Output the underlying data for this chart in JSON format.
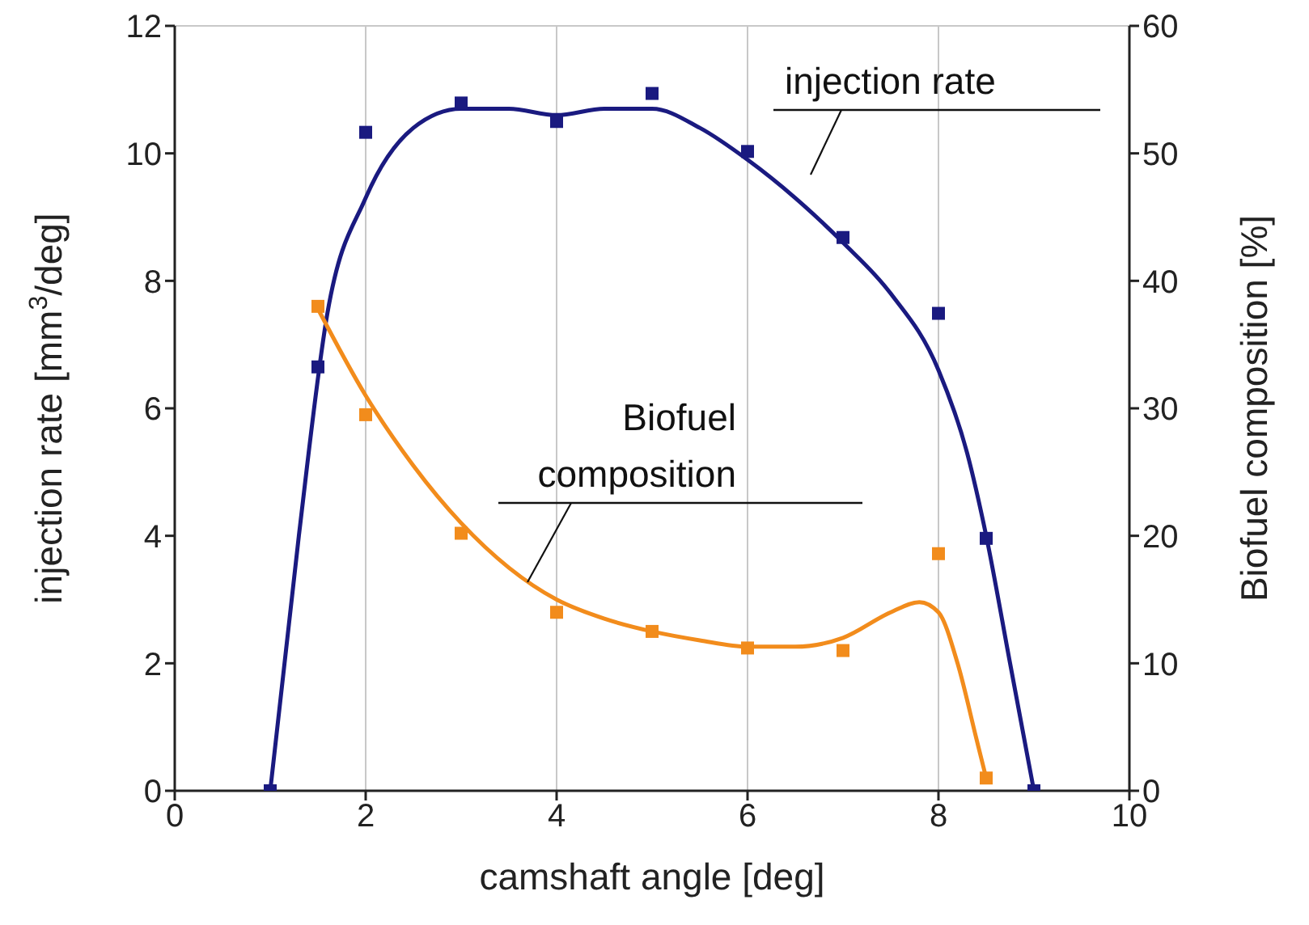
{
  "chart_data": {
    "type": "scatter",
    "xlabel": "camshaft angle [deg]",
    "ylabel": "injection rate [mm$^{3}$/deg]",
    "y2label": "Biofuel composition [%]",
    "xlim": [
      0,
      10
    ],
    "xticks": [
      0,
      2,
      4,
      6,
      8,
      10
    ],
    "ylim": [
      0,
      12
    ],
    "yticks": [
      0,
      2,
      4,
      6,
      8,
      10,
      12
    ],
    "y2lim": [
      0,
      60
    ],
    "y2ticks": [
      0,
      10,
      20,
      30,
      40,
      50,
      60
    ],
    "grid": true,
    "legend": false,
    "series": [
      {
        "name": "injection rate",
        "color": "#1a1a80",
        "marker": "square",
        "x": [
          1,
          1.5,
          2,
          3,
          4,
          5,
          6,
          7,
          8,
          8.5,
          9
        ],
        "values": [
          0,
          6.65,
          10.33,
          10.79,
          10.5,
          10.94,
          10.03,
          8.68,
          7.49,
          3.96,
          0
        ]
      },
      {
        "type": "line",
        "color": "#1a1a80",
        "marker": "none",
        "x": [
          1,
          1.3,
          1.6,
          2,
          2.5,
          3,
          3.5,
          4,
          4.5,
          5,
          5.5,
          6,
          6.5,
          7,
          7.5,
          8,
          8.3,
          8.5,
          8.75,
          9
        ],
        "values": [
          0,
          4,
          7.5,
          9.3,
          10.4,
          10.7,
          10.7,
          10.6,
          10.7,
          10.7,
          10.4,
          9.9,
          9.3,
          8.6,
          7.8,
          6.6,
          5.3,
          4,
          2,
          0
        ]
      },
      {
        "name": "Biofuel composition",
        "axis": "y2",
        "color": "#f28c1c",
        "marker": "square",
        "x": [
          1.5,
          2,
          3,
          4,
          5,
          6,
          7,
          8,
          8.5
        ],
        "values": [
          38,
          29.5,
          20.2,
          14,
          12.5,
          11.2,
          11,
          18.6,
          1
        ]
      },
      {
        "type": "line",
        "axis": "y2",
        "color": "#f28c1c",
        "marker": "none",
        "x": [
          1.5,
          2,
          2.5,
          3,
          3.5,
          4,
          4.5,
          5,
          5.5,
          6,
          6.5,
          7,
          7.5,
          7.8,
          8,
          8.2,
          8.4,
          8.5
        ],
        "values": [
          37.8,
          31,
          25.5,
          21,
          17.5,
          15,
          13.5,
          12.5,
          11.8,
          11.3,
          11.3,
          12,
          14,
          14.8,
          14,
          10,
          4,
          1
        ]
      }
    ]
  }
}
